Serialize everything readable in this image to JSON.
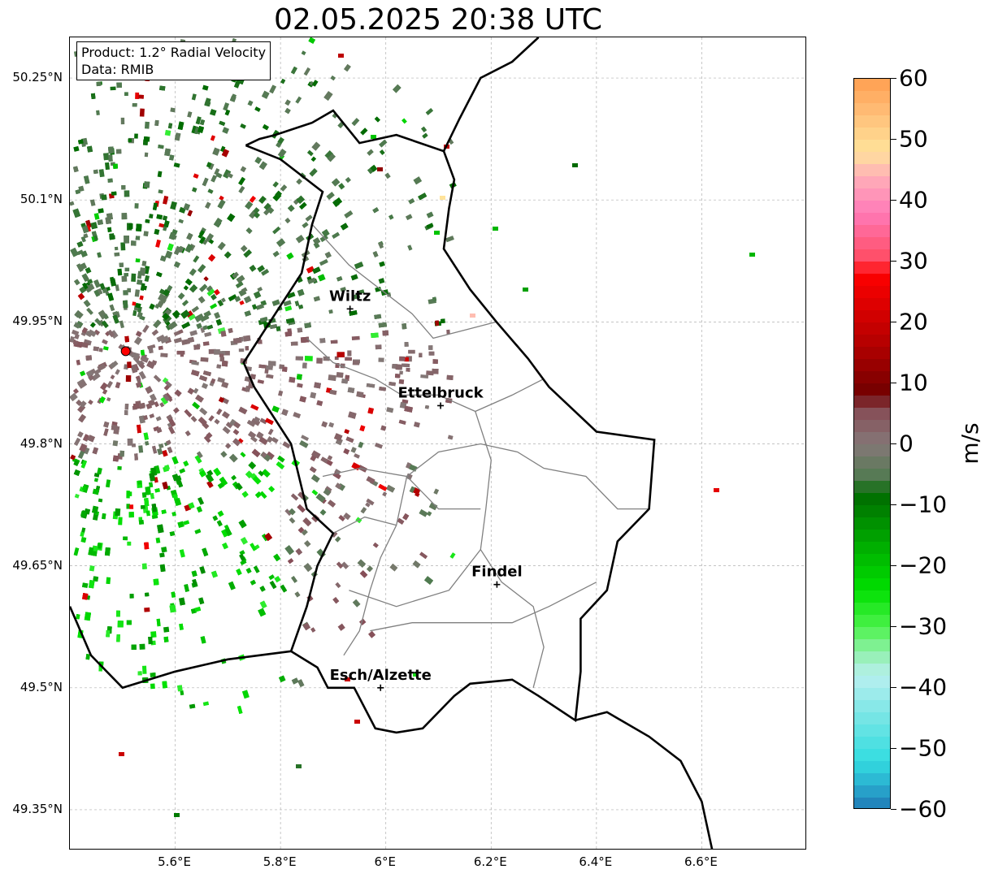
{
  "title": "02.05.2025 20:38 UTC",
  "info": {
    "product": "Product: 1.2° Radial Velocity",
    "data_source": "Data: RMIB"
  },
  "map": {
    "lon_range": [
      5.4,
      6.8
    ],
    "lat_range": [
      49.3,
      50.3
    ],
    "lat_ticks": [
      {
        "value": 50.25,
        "label": "50.25°N"
      },
      {
        "value": 50.1,
        "label": "50.1°N"
      },
      {
        "value": 49.95,
        "label": "49.95°N"
      },
      {
        "value": 49.8,
        "label": "49.8°N"
      },
      {
        "value": 49.65,
        "label": "49.65°N"
      },
      {
        "value": 49.5,
        "label": "49.5°N"
      },
      {
        "value": 49.35,
        "label": "49.35°N"
      }
    ],
    "lon_ticks": [
      {
        "value": 5.6,
        "label": "5.6°E"
      },
      {
        "value": 5.8,
        "label": "5.8°E"
      },
      {
        "value": 6.0,
        "label": "6°E"
      },
      {
        "value": 6.2,
        "label": "6.2°E"
      },
      {
        "value": 6.4,
        "label": "6.4°E"
      },
      {
        "value": 6.6,
        "label": "6.6°E"
      }
    ],
    "radar_site": {
      "lon": 5.506,
      "lat": 49.914
    },
    "cities": [
      {
        "name": "Wiltz",
        "lon": 5.932,
        "lat": 49.966
      },
      {
        "name": "Ettelbruck",
        "lon": 6.104,
        "lat": 49.847
      },
      {
        "name": "Findel",
        "lon": 6.211,
        "lat": 49.627
      },
      {
        "name": "Esch/Alzette",
        "lon": 5.99,
        "lat": 49.5
      }
    ],
    "colors": {
      "border": "#000000",
      "canton": "#808080",
      "grid": "#b0b0b0",
      "radar_site": "#ff0000"
    }
  },
  "colorbar": {
    "unit": "m/s",
    "vmin": -60,
    "vmax": 60,
    "ticks": [
      {
        "value": 60,
        "label": "60"
      },
      {
        "value": 50,
        "label": "50"
      },
      {
        "value": 40,
        "label": "40"
      },
      {
        "value": 30,
        "label": "30"
      },
      {
        "value": 20,
        "label": "20"
      },
      {
        "value": 10,
        "label": "10"
      },
      {
        "value": 0,
        "label": "0"
      },
      {
        "value": -10,
        "label": "−10"
      },
      {
        "value": -20,
        "label": "−20"
      },
      {
        "value": -30,
        "label": "−30"
      },
      {
        "value": -40,
        "label": "−40"
      },
      {
        "value": -50,
        "label": "−50"
      },
      {
        "value": -60,
        "label": "−60"
      }
    ],
    "stops": [
      {
        "value": -60,
        "color": "#1f77b4"
      },
      {
        "value": -56,
        "color": "#2aaed0"
      },
      {
        "value": -52,
        "color": "#33dde0"
      },
      {
        "value": -44,
        "color": "#7ee6e6"
      },
      {
        "value": -38,
        "color": "#b9f0f0"
      },
      {
        "value": -34,
        "color": "#8ef0a8"
      },
      {
        "value": -30,
        "color": "#4cf24c"
      },
      {
        "value": -24,
        "color": "#00e000"
      },
      {
        "value": -16,
        "color": "#00a800"
      },
      {
        "value": -8,
        "color": "#006a00"
      },
      {
        "value": -6,
        "color": "#4e7a4e"
      },
      {
        "value": 0,
        "color": "#857878"
      },
      {
        "value": 6,
        "color": "#864a54"
      },
      {
        "value": 8,
        "color": "#700000"
      },
      {
        "value": 16,
        "color": "#b00000"
      },
      {
        "value": 28,
        "color": "#ff0000"
      },
      {
        "value": 30,
        "color": "#ff4a60"
      },
      {
        "value": 38,
        "color": "#ff7ab8"
      },
      {
        "value": 44,
        "color": "#ffb0b8"
      },
      {
        "value": 48,
        "color": "#ffe39a"
      },
      {
        "value": 54,
        "color": "#ffc07a"
      },
      {
        "value": 60,
        "color": "#ff9e50"
      }
    ]
  }
}
